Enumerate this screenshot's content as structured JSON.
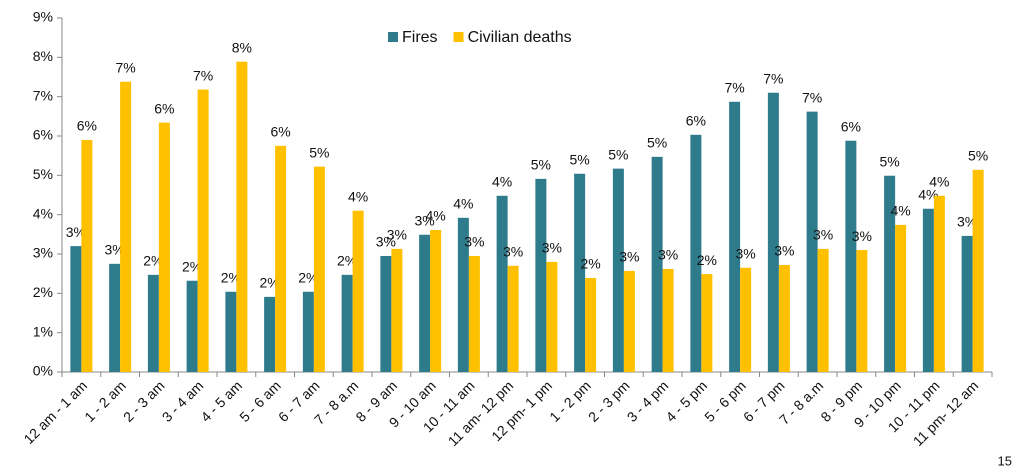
{
  "chart_data": {
    "type": "bar",
    "categories": [
      "12 am - 1 am",
      "1 - 2 am",
      "2 - 3 am",
      "3 - 4 am",
      "4 - 5 am",
      "5 - 6 am",
      "6 - 7 am",
      "7 - 8 a.m",
      "8 - 9 am",
      "9 - 10 am",
      "10 - 11 am",
      "11 am- 12 pm",
      "12 pm- 1 pm",
      "1 - 2 pm",
      "2 - 3 pm",
      "3 - 4 pm",
      "4 - 5 pm",
      "5 - 6 pm",
      "6 - 7 pm",
      "7 - 8 a.m",
      "8 - 9 pm",
      "9 - 10 pm",
      "10 - 11 pm",
      "11 pm- 12 am"
    ],
    "series": [
      {
        "name": "Fires",
        "color": "#2e7b8c",
        "values": [
          3.2,
          2.75,
          2.47,
          2.32,
          2.04,
          1.91,
          2.04,
          2.47,
          2.95,
          3.49,
          3.92,
          4.48,
          4.91,
          5.04,
          5.17,
          5.47,
          6.03,
          6.87,
          7.1,
          6.62,
          5.88,
          4.99,
          4.15,
          3.46
        ],
        "value_labels": [
          "3%",
          "3%",
          "2%",
          "2%",
          "2%",
          "2%",
          "2%",
          "2%",
          "3%",
          "3%",
          "4%",
          "4%",
          "5%",
          "5%",
          "5%",
          "5%",
          "6%",
          "7%",
          "7%",
          "7%",
          "6%",
          "5%",
          "4%",
          "3%"
        ]
      },
      {
        "name": "Civilian deaths",
        "color": "#ffc000",
        "values": [
          5.9,
          7.38,
          6.34,
          7.18,
          7.89,
          5.75,
          5.22,
          4.1,
          3.13,
          3.61,
          2.95,
          2.7,
          2.8,
          2.39,
          2.57,
          2.62,
          2.49,
          2.65,
          2.72,
          3.13,
          3.1,
          3.74,
          4.48,
          5.14
        ],
        "value_labels": [
          "6%",
          "7%",
          "6%",
          "7%",
          "8%",
          "6%",
          "5%",
          "4%",
          "3%",
          "4%",
          "3%",
          "3%",
          "3%",
          "2%",
          "3%",
          "3%",
          "2%",
          "3%",
          "3%",
          "3%",
          "3%",
          "4%",
          "4%",
          "5%"
        ]
      }
    ],
    "ylim": [
      0,
      9
    ],
    "yticks": [
      {
        "value": 0,
        "label": "0%"
      },
      {
        "value": 1,
        "label": "1%"
      },
      {
        "value": 2,
        "label": "2%"
      },
      {
        "value": 3,
        "label": "3%"
      },
      {
        "value": 4,
        "label": "4%"
      },
      {
        "value": 5,
        "label": "5%"
      },
      {
        "value": 6,
        "label": "6%"
      },
      {
        "value": 7,
        "label": "7%"
      },
      {
        "value": 8,
        "label": "8%"
      },
      {
        "value": 9,
        "label": "9%"
      }
    ],
    "legend": "top"
  },
  "page_number": "15"
}
